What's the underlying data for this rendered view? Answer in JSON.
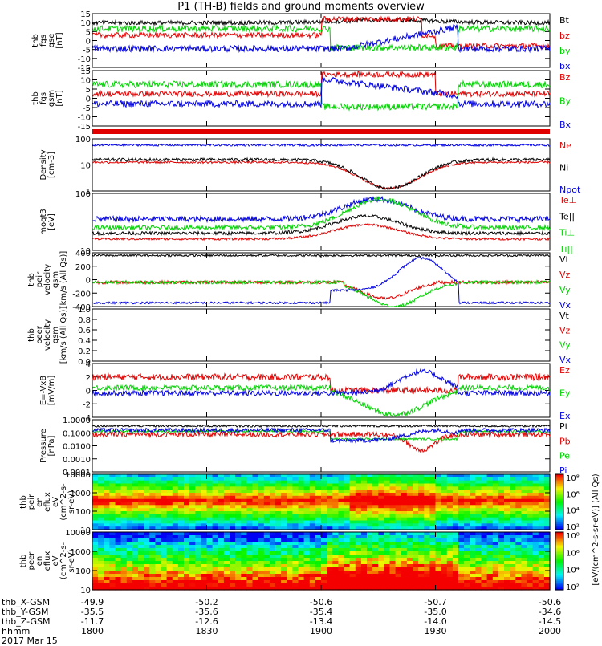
{
  "title": "P1 (TH-B) fields and ground moments overview",
  "colors": {
    "black": "#000000",
    "red": "#e00000",
    "green": "#00d000",
    "blue": "#0000e0"
  },
  "chart_data": [
    {
      "type": "line",
      "id": "fgs_gse",
      "ylabel": [
        "thb",
        "fgs",
        "gse",
        "[nT]"
      ],
      "ylim": [
        -15,
        15
      ],
      "yticks": [
        "15",
        "10",
        "5",
        "0",
        "-5",
        "-10",
        "-15"
      ],
      "legend": [
        {
          "label": "Bt",
          "color": "black"
        },
        {
          "label": "bz",
          "color": "red"
        },
        {
          "label": "by",
          "color": "green"
        },
        {
          "label": "bx",
          "color": "blue"
        }
      ]
    },
    {
      "type": "line",
      "id": "fgs_gsm",
      "ylabel": [
        "thb",
        "fgs",
        "gsm",
        "[nT]"
      ],
      "ylim": [
        -15,
        15
      ],
      "yticks": [
        "15",
        "10",
        "5",
        "0",
        "-5",
        "-10",
        "-15"
      ],
      "legend": [
        {
          "label": "Bz",
          "color": "red"
        },
        {
          "label": "By",
          "color": "green"
        },
        {
          "label": "Bx",
          "color": "blue"
        }
      ]
    },
    {
      "type": "bar",
      "id": "flag_bar",
      "color": "red"
    },
    {
      "type": "line",
      "id": "density",
      "log": true,
      "ylabel": [
        "Density",
        "[cm-3]"
      ],
      "ylim": [
        0.5,
        150
      ],
      "yticks": [
        "100",
        "10",
        "1"
      ],
      "legend": [
        {
          "label": "Ne",
          "color": "red"
        },
        {
          "label": "Ni",
          "color": "black"
        },
        {
          "label": "Npot",
          "color": "blue"
        }
      ]
    },
    {
      "type": "line",
      "id": "temperature",
      "log": true,
      "ylabel": [
        "moqt3",
        "[eV]"
      ],
      "ylim": [
        8,
        800
      ],
      "yticks": [
        "100",
        "10"
      ],
      "legend": [
        {
          "label": "Te⊥",
          "color": "red"
        },
        {
          "label": "Te||",
          "color": "black"
        },
        {
          "label": "Ti⊥",
          "color": "green"
        },
        {
          "label": "Ti||",
          "color": "green"
        }
      ]
    },
    {
      "type": "line",
      "id": "peir_velocity",
      "ylabel": [
        "thb",
        "peir",
        "velocity",
        "gsm",
        "[km/s (All Qs)]"
      ],
      "ylim": [
        -400,
        400
      ],
      "yticks": [
        "400",
        "200",
        "0",
        "-200",
        "-400"
      ],
      "legend": [
        {
          "label": "Vt",
          "color": "black"
        },
        {
          "label": "Vz",
          "color": "red"
        },
        {
          "label": "Vy",
          "color": "green"
        },
        {
          "label": "Vx",
          "color": "blue"
        }
      ]
    },
    {
      "type": "line",
      "id": "peer_velocity",
      "ylabel": [
        "thb",
        "peer",
        "velocity",
        "gsm",
        "[km/s (All Qs)]"
      ],
      "ylim": [
        0,
        1.1
      ],
      "yticks": [
        "1.0",
        "0.8",
        "0.6",
        "0.4",
        "0.2",
        "0.0"
      ],
      "legend": [
        {
          "label": "Vt",
          "color": "black"
        },
        {
          "label": "Vz",
          "color": "red"
        },
        {
          "label": "Vy",
          "color": "green"
        },
        {
          "label": "Vx",
          "color": "blue"
        }
      ]
    },
    {
      "type": "line",
      "id": "efield",
      "ylabel": [
        "E=-VxB",
        "[mV/m]"
      ],
      "ylim": [
        -4,
        4
      ],
      "yticks": [
        "4",
        "2",
        "0",
        "-2",
        "-4"
      ],
      "legend": [
        {
          "label": "Ez",
          "color": "red"
        },
        {
          "label": "Ey",
          "color": "green"
        },
        {
          "label": "Ex",
          "color": "blue"
        }
      ]
    },
    {
      "type": "line",
      "id": "pressure",
      "log": true,
      "ylabel": [
        "Pressure",
        "[nPa]"
      ],
      "ylim": [
        0.0001,
        1.0
      ],
      "yticks": [
        "1.0000",
        "0.1000",
        "0.0100",
        "0.0010",
        "0.0001"
      ],
      "legend": [
        {
          "label": "Pt",
          "color": "black"
        },
        {
          "label": "Pb",
          "color": "red"
        },
        {
          "label": "Pe",
          "color": "green"
        },
        {
          "label": "Pi",
          "color": "blue"
        }
      ]
    },
    {
      "type": "heatmap",
      "id": "peir_spec",
      "ylabel": [
        "thb",
        "peir",
        "en",
        "eflux",
        "eV",
        "(cm^2-s-",
        "sr-eV)"
      ],
      "yticks": [
        "10000",
        "1000",
        "100",
        "10"
      ]
    },
    {
      "type": "heatmap",
      "id": "peer_spec",
      "ylabel": [
        "thb",
        "peer",
        "en",
        "eflux",
        "eV",
        "(cm^2-s-",
        "sr-eV)"
      ],
      "yticks": [
        "10000",
        "1000",
        "100",
        "10"
      ]
    }
  ],
  "colorbar": {
    "ticks": [
      "10⁸",
      "10⁶",
      "10⁴",
      "10²"
    ],
    "label": "[eV/(cm^2-s-sr-eV)] (All Qs)"
  },
  "xaxis": {
    "rows": [
      {
        "label": "thb_X-GSM",
        "values": [
          "-49.9",
          "-50.2",
          "-50.6",
          "-50.7",
          "-50.6"
        ]
      },
      {
        "label": "thb_Y-GSM",
        "values": [
          "-35.5",
          "-35.6",
          "-35.4",
          "-35.0",
          "-34.6"
        ]
      },
      {
        "label": "thb_Z-GSM",
        "values": [
          "-11.7",
          "-12.6",
          "-13.4",
          "-14.0",
          "-14.5"
        ]
      },
      {
        "label": "hhmm",
        "values": [
          "1800",
          "1830",
          "1900",
          "1930",
          "2000"
        ]
      }
    ],
    "date": "2017 Mar 15"
  }
}
